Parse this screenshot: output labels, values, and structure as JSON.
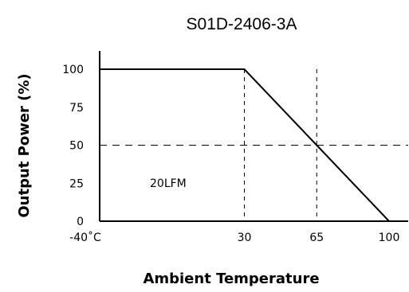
{
  "chart_data": {
    "type": "line",
    "title": "S01D-2406-3A",
    "xlabel": "Ambient Temperature",
    "ylabel": "Output Power (%)",
    "x_tick_labels": [
      "-40˚C",
      "30",
      "65",
      "100"
    ],
    "x_ticks": [
      -40,
      30,
      65,
      100
    ],
    "y_ticks": [
      0,
      25,
      50,
      75,
      100
    ],
    "y_tick_labels": [
      "0",
      "25",
      "50",
      "75",
      "100"
    ],
    "ylim": [
      0,
      100
    ],
    "series": [
      {
        "x": [
          -40,
          30,
          65,
          100
        ],
        "y": [
          100,
          100,
          50,
          0
        ]
      }
    ],
    "reference_lines": {
      "horizontal": [
        50
      ],
      "vertical": [
        30,
        65
      ]
    },
    "annotation": "20LFM",
    "annotation_position": {
      "x": -15,
      "y": 25
    },
    "grid": false
  }
}
